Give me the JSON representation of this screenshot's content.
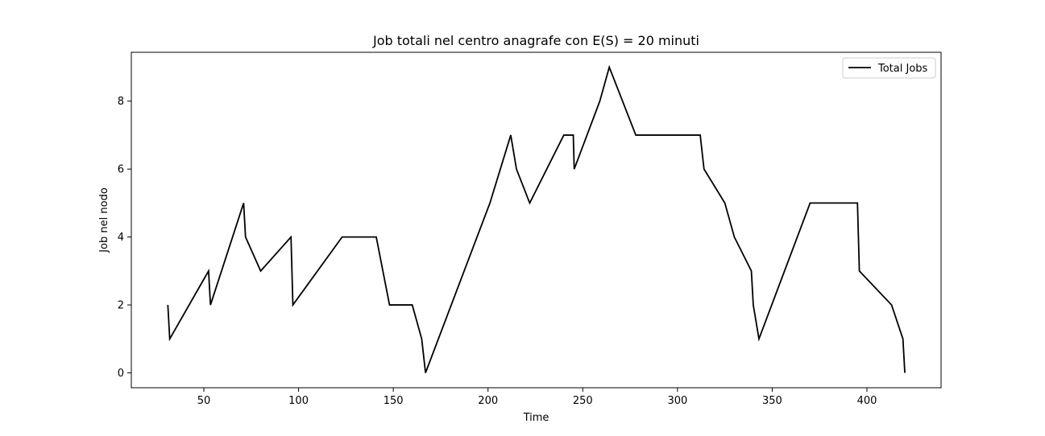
{
  "chart_data": {
    "type": "line",
    "title": "Job totali nel centro anagrafe con E(S) = 20 minuti",
    "xlabel": "Time",
    "ylabel": "Job nel nodo",
    "xlim": [
      11,
      420
    ],
    "ylim": [
      0,
      9
    ],
    "x_ticks": [
      50,
      100,
      150,
      200,
      250,
      300,
      350,
      400
    ],
    "y_ticks": [
      0,
      2,
      4,
      6,
      8
    ],
    "grid": false,
    "legend_placement": "top-right",
    "series": [
      {
        "name": "Total Jobs",
        "color": "#000000",
        "x": [
          31,
          32,
          52.5,
          53.5,
          71,
          72,
          80,
          96,
          96.5,
          97,
          123,
          141,
          148,
          160,
          165,
          167,
          201,
          212,
          215,
          222,
          240,
          245,
          245.5,
          259,
          264,
          271,
          278,
          312,
          314,
          325,
          330,
          339,
          340,
          343,
          370,
          395,
          395.5,
          396,
          413,
          419,
          420
        ],
        "values": [
          2,
          1,
          3,
          2,
          5,
          4,
          3,
          4,
          3,
          2,
          4,
          4,
          2,
          2,
          1,
          0,
          5,
          7,
          6,
          5,
          7,
          7,
          6,
          8,
          9,
          8,
          7,
          7,
          6,
          5,
          4,
          3,
          2,
          1,
          5,
          5,
          4,
          3,
          2,
          1,
          0
        ]
      }
    ]
  }
}
